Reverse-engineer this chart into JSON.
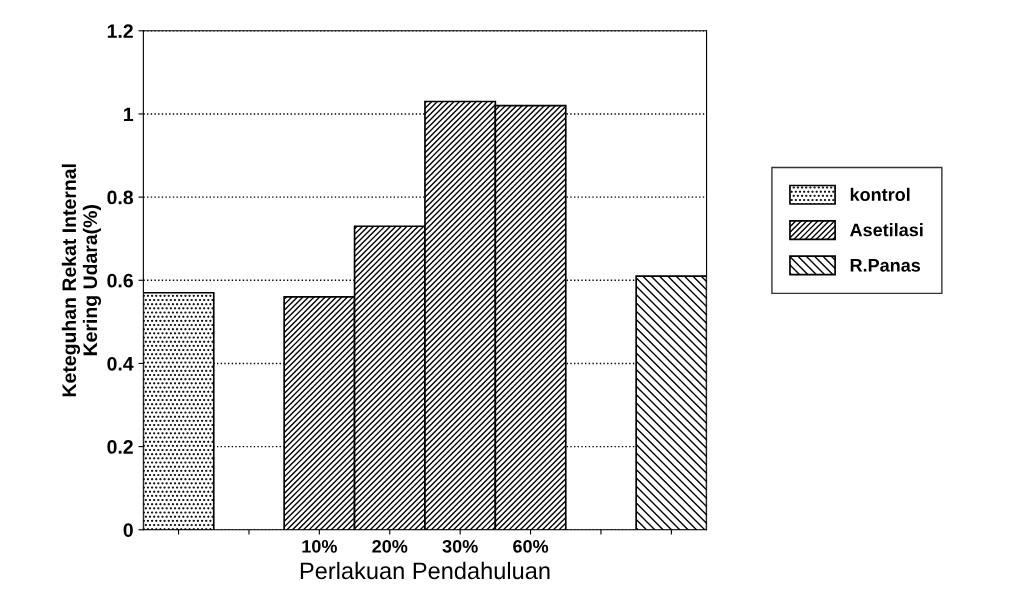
{
  "chart_data": {
    "type": "bar",
    "xlabel": "Perlakuan Pendahuluan",
    "ylabel": "Keteguhan Rekat Internal\nKering Udara(%)",
    "categories": [
      null,
      null,
      "10%",
      "20%",
      "30%",
      "60%",
      null,
      null
    ],
    "series": [
      {
        "name": "kontrol",
        "color": "#000000",
        "values": [
          0.57,
          null,
          null,
          null,
          null,
          null,
          null,
          null
        ]
      },
      {
        "name": "Asetilasi",
        "color": "#000000",
        "values": [
          null,
          null,
          0.56,
          0.73,
          1.03,
          1.02,
          null,
          null
        ]
      },
      {
        "name": "R.Panas",
        "color": "#000000",
        "values": [
          null,
          null,
          null,
          null,
          null,
          null,
          null,
          0.61
        ]
      }
    ],
    "ylim": [
      0,
      1.2
    ],
    "yticks": [
      0,
      0.2,
      0.4,
      0.6,
      0.8,
      1,
      1.2
    ],
    "grid": "y",
    "legend": "right"
  }
}
